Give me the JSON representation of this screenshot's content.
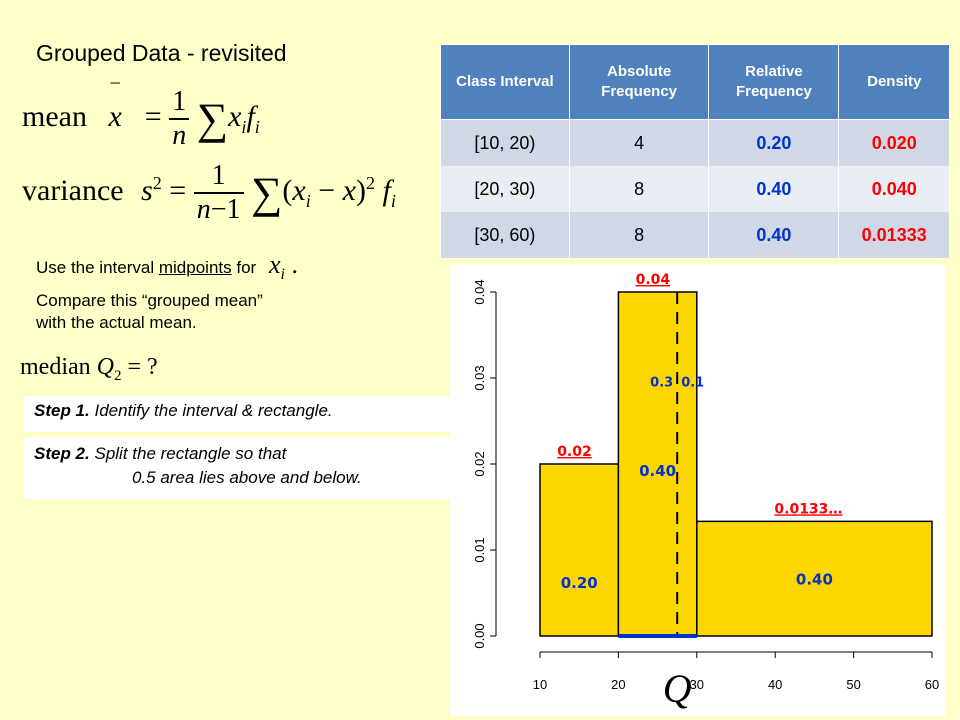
{
  "title": "Grouped Data - revisited",
  "formulas": {
    "mean_label": "mean",
    "variance_label": "variance",
    "median_label": "median",
    "median_suffix": "= ?"
  },
  "notes": {
    "midpoints_prefix": "Use the interval",
    "midpoints_word": "midpoints",
    "midpoints_suffix": "for",
    "compare_line1": "Compare this “grouped mean”",
    "compare_line2": "with the actual mean."
  },
  "steps": {
    "step1_label": "Step 1.",
    "step1_text": "Identify the interval & rectangle.",
    "step2_label": "Step 2.",
    "step2_line1": "Split the rectangle so that",
    "step2_line2": "0.5 area lies above and below."
  },
  "table": {
    "headers": [
      "Class Interval",
      "Absolute Frequency",
      "Relative Frequency",
      "Density"
    ],
    "rows": [
      [
        "[10, 20)",
        "4",
        "0.20",
        "0.020"
      ],
      [
        "[20, 30)",
        "8",
        "0.40",
        "0.040"
      ],
      [
        "[30, 60)",
        "8",
        "0.40",
        "0.01333"
      ]
    ]
  },
  "colors": {
    "header": "#4f81bd",
    "bar": "#ffd700",
    "red": "#ff0000",
    "blue": "#0033cc"
  },
  "chart_data": {
    "type": "bar",
    "title": "",
    "xlabel": "",
    "ylabel": "",
    "xlim": [
      10,
      60
    ],
    "ylim": [
      0,
      0.04
    ],
    "xticks": [
      "10",
      "20",
      "30",
      "40",
      "50",
      "60"
    ],
    "yticks": [
      "0.00",
      "0.01",
      "0.02",
      "0.03",
      "0.04"
    ],
    "bins": [
      {
        "x0": 10,
        "x1": 20,
        "density": 0.02,
        "density_label": "0.02",
        "area_label": "0.20"
      },
      {
        "x0": 20,
        "x1": 30,
        "density": 0.04,
        "density_label": "0.04",
        "area_label": "0.40"
      },
      {
        "x0": 30,
        "x1": 60,
        "density": 0.01333,
        "density_label": "0.0133…",
        "area_label": "0.40"
      }
    ],
    "split": {
      "x": 27.5,
      "left_label": "0.3",
      "right_label": "0.1"
    },
    "median_marker": "Q"
  }
}
